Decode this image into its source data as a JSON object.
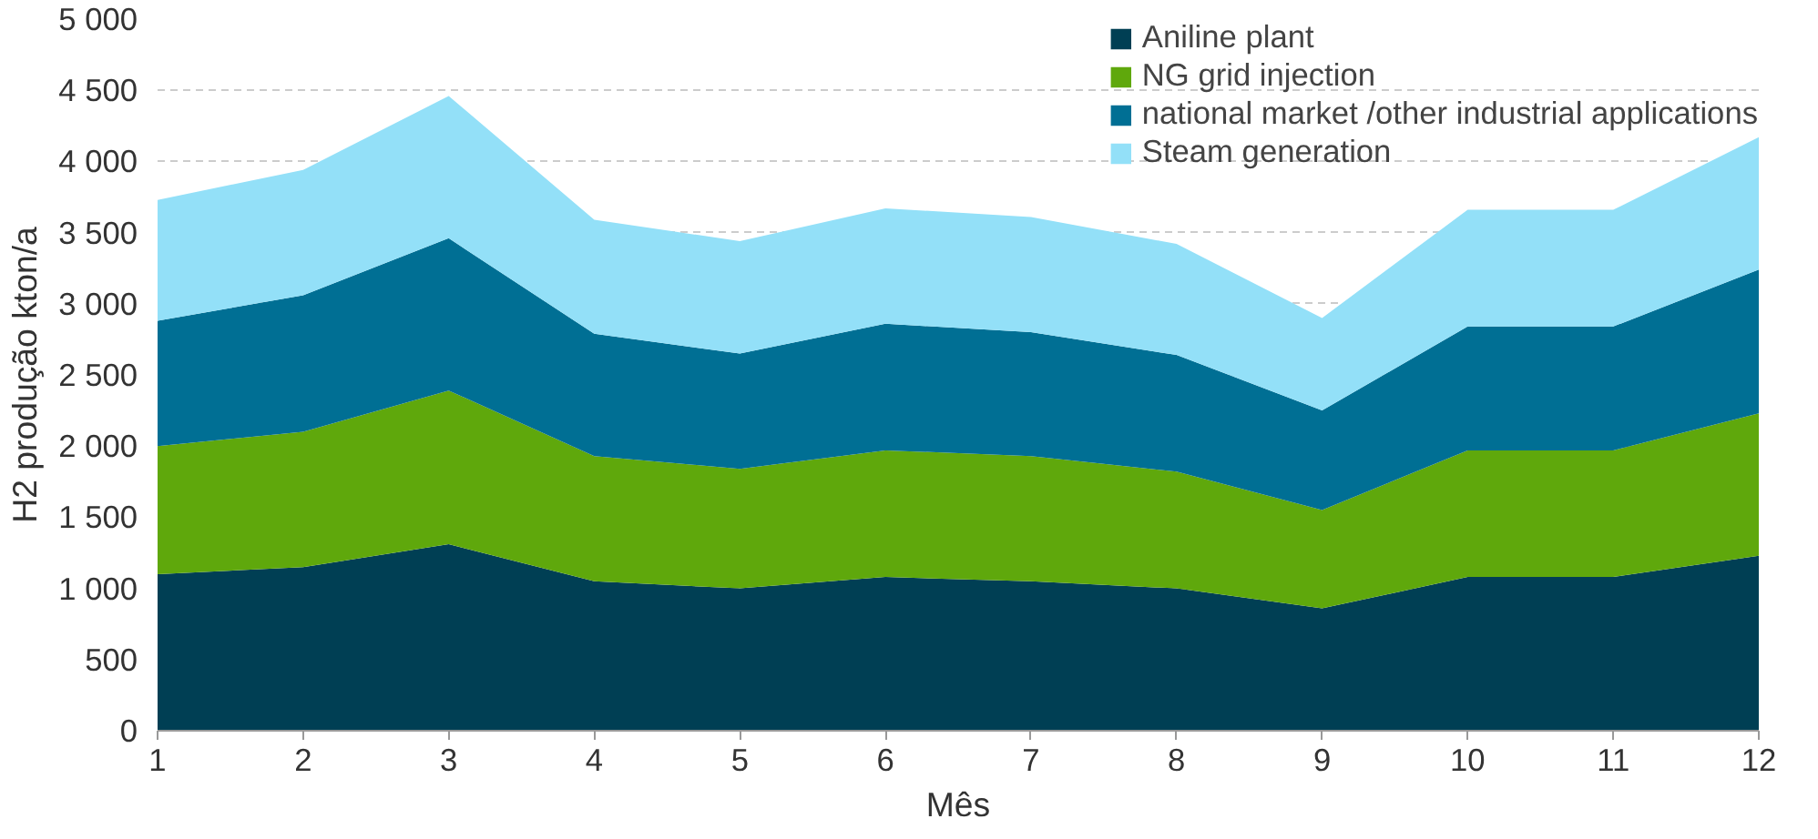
{
  "chart_data": {
    "type": "area",
    "stacked": true,
    "xlabel": "Mês",
    "ylabel": "H2 produção kton/a",
    "x": [
      1,
      2,
      3,
      4,
      5,
      6,
      7,
      8,
      9,
      10,
      11,
      12
    ],
    "xlim": [
      1,
      12
    ],
    "xticks": [
      1,
      2,
      3,
      4,
      5,
      6,
      7,
      8,
      9,
      10,
      11,
      12
    ],
    "ylim": [
      0,
      5000
    ],
    "yticks": [
      0,
      500,
      {
        "value": 1000,
        "label": "1 000"
      },
      {
        "value": 1500,
        "label": "1 500"
      },
      {
        "value": 2000,
        "label": "2 000"
      },
      {
        "value": 2500,
        "label": "2 500"
      },
      {
        "value": 3000,
        "label": "3 000"
      },
      {
        "value": 3500,
        "label": "3 500"
      },
      {
        "value": 4000,
        "label": "4 000"
      },
      {
        "value": 4500,
        "label": "4 500"
      },
      {
        "value": 5000,
        "label": "5 000"
      }
    ],
    "grid": "y",
    "legend": "top right",
    "series": [
      {
        "name": "Aniline plant",
        "color": "#003f54",
        "values": [
          1100,
          1150,
          1310,
          1050,
          1000,
          1080,
          1050,
          1000,
          860,
          1080,
          1080,
          1230
        ]
      },
      {
        "name": "NG grid injection",
        "color": "#5fa80c",
        "values": [
          900,
          950,
          1080,
          880,
          840,
          890,
          880,
          820,
          690,
          890,
          890,
          1000
        ]
      },
      {
        "name": "national market /other industrial applications",
        "color": "#006f94",
        "values": [
          880,
          960,
          1070,
          860,
          810,
          890,
          870,
          820,
          700,
          870,
          870,
          1010
        ]
      },
      {
        "name": "Steam generation",
        "color": "#93e0f8",
        "values": [
          850,
          880,
          1000,
          800,
          790,
          810,
          810,
          780,
          650,
          820,
          820,
          930
        ]
      }
    ]
  }
}
